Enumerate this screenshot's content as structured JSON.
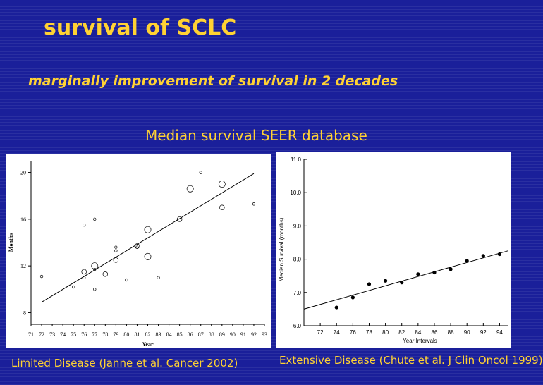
{
  "slide": {
    "title": "survival of SCLC",
    "subtitle": "marginally improvement of survival in 2 decades",
    "chart_heading": "Median survival SEER database",
    "caption_left": "Limited Disease (Janne et al. Cancer 2002)",
    "caption_right": "Extensive Disease (Chute et al. J Clin Oncol 1999)"
  },
  "colors": {
    "background": "#1a1f9a",
    "accent_text": "#ffd233"
  },
  "chart_data": [
    {
      "type": "scatter",
      "title": "",
      "xlabel": "Year",
      "ylabel": "Months",
      "xlim": [
        71,
        93
      ],
      "ylim": [
        7,
        21
      ],
      "x_ticks": [
        71,
        72,
        73,
        74,
        75,
        76,
        77,
        78,
        79,
        80,
        81,
        82,
        83,
        84,
        85,
        86,
        87,
        88,
        89,
        90,
        91,
        92,
        93
      ],
      "y_ticks": [
        8,
        12,
        16,
        20
      ],
      "grid": false,
      "points": [
        {
          "x": 72,
          "y": 11.1,
          "size": "small"
        },
        {
          "x": 75,
          "y": 10.2,
          "size": "small"
        },
        {
          "x": 76,
          "y": 15.5,
          "size": "small"
        },
        {
          "x": 76,
          "y": 11.5,
          "size": "medium"
        },
        {
          "x": 76,
          "y": 11.0,
          "size": "small"
        },
        {
          "x": 77,
          "y": 16.0,
          "size": "small"
        },
        {
          "x": 77,
          "y": 12.0,
          "size": "large"
        },
        {
          "x": 77,
          "y": 11.7,
          "size": "small"
        },
        {
          "x": 77,
          "y": 10.0,
          "size": "small"
        },
        {
          "x": 78,
          "y": 11.3,
          "size": "medium"
        },
        {
          "x": 79,
          "y": 13.6,
          "size": "small"
        },
        {
          "x": 79,
          "y": 13.3,
          "size": "small"
        },
        {
          "x": 79,
          "y": 12.5,
          "size": "medium"
        },
        {
          "x": 80,
          "y": 10.8,
          "size": "small"
        },
        {
          "x": 81,
          "y": 13.7,
          "size": "medium"
        },
        {
          "x": 81,
          "y": 13.6,
          "size": "small"
        },
        {
          "x": 82,
          "y": 15.1,
          "size": "large"
        },
        {
          "x": 82,
          "y": 12.8,
          "size": "large"
        },
        {
          "x": 83,
          "y": 11.0,
          "size": "small"
        },
        {
          "x": 85,
          "y": 16.0,
          "size": "medium"
        },
        {
          "x": 86,
          "y": 18.6,
          "size": "large"
        },
        {
          "x": 87,
          "y": 20.0,
          "size": "small"
        },
        {
          "x": 89,
          "y": 19.0,
          "size": "large"
        },
        {
          "x": 89,
          "y": 17.0,
          "size": "medium"
        },
        {
          "x": 92,
          "y": 17.3,
          "size": "small"
        }
      ],
      "trendline": {
        "x": [
          72,
          92
        ],
        "y": [
          8.9,
          19.9
        ]
      }
    },
    {
      "type": "scatter",
      "title": "",
      "xlabel": "Year Intervals",
      "ylabel": "Median Survival (months)",
      "xlim": [
        70,
        95
      ],
      "ylim": [
        6.0,
        11.0
      ],
      "x_ticks": [
        72,
        74,
        76,
        78,
        80,
        82,
        84,
        86,
        88,
        90,
        92,
        94
      ],
      "x_tick_labels": [
        "72",
        "74",
        "76",
        "78",
        "80",
        "82",
        "84",
        "86",
        "88",
        "90",
        "92",
        "94"
      ],
      "y_ticks": [
        6.0,
        7.0,
        8.0,
        9.0,
        10.0,
        11.0
      ],
      "y_tick_labels": [
        "6.0",
        "7.0",
        "8.0",
        "9.0",
        "10.0",
        "11.0"
      ],
      "grid": false,
      "points": [
        {
          "x": 74,
          "y": 6.55
        },
        {
          "x": 76,
          "y": 6.85
        },
        {
          "x": 78,
          "y": 7.25
        },
        {
          "x": 80,
          "y": 7.35
        },
        {
          "x": 82,
          "y": 7.3
        },
        {
          "x": 84,
          "y": 7.55
        },
        {
          "x": 86,
          "y": 7.6
        },
        {
          "x": 88,
          "y": 7.7
        },
        {
          "x": 90,
          "y": 7.95
        },
        {
          "x": 92,
          "y": 8.1
        },
        {
          "x": 94,
          "y": 8.15
        }
      ],
      "trendline": {
        "x": [
          70,
          95
        ],
        "y": [
          6.5,
          8.25
        ]
      }
    }
  ]
}
